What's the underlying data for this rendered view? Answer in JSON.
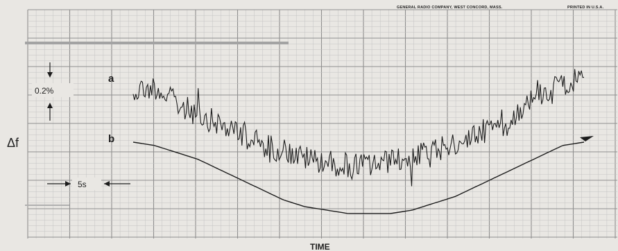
{
  "header": {
    "company": "GENERAL RADIO COMPANY, WEST CONCORD, MASS.",
    "printed": "PRINTED IN U.S.A."
  },
  "chart_data": {
    "type": "line",
    "xlabel": "TIME",
    "ylabel": "Δf",
    "scale_annotations": {
      "vertical": "0.2%",
      "horizontal": "5s"
    },
    "x_range": [
      0,
      42
    ],
    "x_unit": "s",
    "series": [
      {
        "name": "a",
        "description_note": "noisy frequency record",
        "x": [
          0,
          2,
          4,
          6,
          8,
          10,
          12,
          14,
          16,
          18,
          20,
          22,
          24,
          26,
          28,
          30,
          32,
          34,
          36,
          38,
          40,
          42
        ],
        "y": [
          0.0,
          0.01,
          -0.04,
          -0.07,
          -0.1,
          -0.13,
          -0.16,
          -0.18,
          -0.2,
          -0.21,
          -0.22,
          -0.22,
          -0.21,
          -0.2,
          -0.18,
          -0.16,
          -0.13,
          -0.1,
          -0.06,
          -0.01,
          0.02,
          0.03
        ]
      },
      {
        "name": "b",
        "x": [
          0,
          2,
          4,
          6,
          8,
          10,
          12,
          14,
          16,
          18,
          20,
          22,
          24,
          26,
          28,
          30,
          32,
          34,
          36,
          38,
          40,
          42
        ],
        "y": [
          0.0,
          -0.01,
          -0.03,
          -0.05,
          -0.08,
          -0.11,
          -0.14,
          -0.17,
          -0.19,
          -0.2,
          -0.21,
          -0.21,
          -0.21,
          -0.2,
          -0.18,
          -0.16,
          -0.13,
          -0.1,
          -0.07,
          -0.04,
          -0.01,
          0.0
        ]
      }
    ],
    "grid": true
  }
}
